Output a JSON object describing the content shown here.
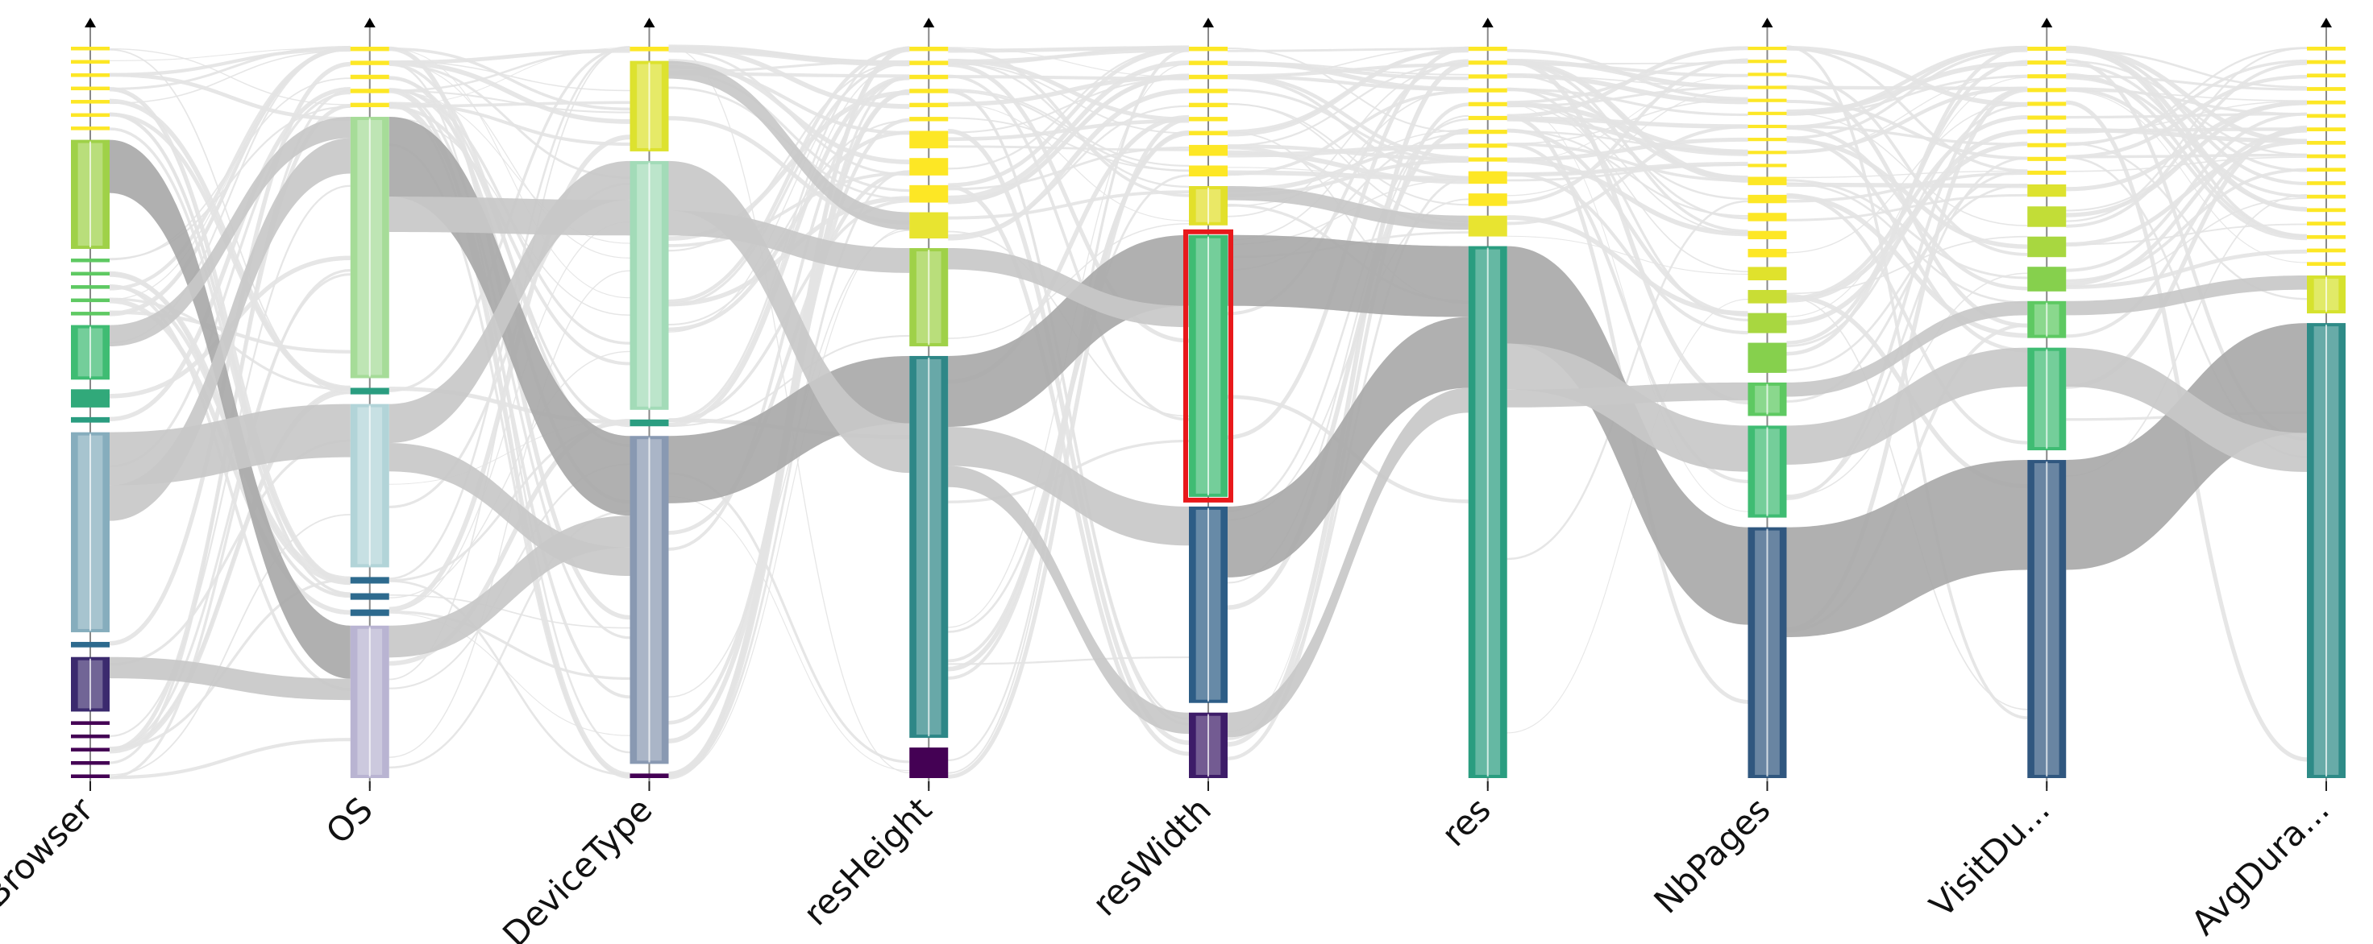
{
  "chart_data": {
    "type": "parallel-sets",
    "axes": [
      {
        "label": "Browser"
      },
      {
        "label": "OS"
      },
      {
        "label": "DeviceType"
      },
      {
        "label": "resHeight"
      },
      {
        "label": "resWidth"
      },
      {
        "label": "res"
      },
      {
        "label": "NbPages"
      },
      {
        "label": "VisitDu..."
      },
      {
        "label": "AvgDura..."
      }
    ],
    "categories": [
      [
        {
          "size": 2,
          "color": "#fde725"
        },
        {
          "size": 2,
          "color": "#fde725"
        },
        {
          "size": 2,
          "color": "#fde725"
        },
        {
          "size": 2,
          "color": "#fde725"
        },
        {
          "size": 2,
          "color": "#fde725"
        },
        {
          "size": 2,
          "color": "#fde725"
        },
        {
          "size": 2,
          "color": "#fde725"
        },
        {
          "size": 60,
          "color": "#9fd148"
        },
        {
          "size": 2,
          "color": "#5ec962"
        },
        {
          "size": 2,
          "color": "#5ec962"
        },
        {
          "size": 2,
          "color": "#5ec962"
        },
        {
          "size": 2,
          "color": "#5ec962"
        },
        {
          "size": 2,
          "color": "#5ec962"
        },
        {
          "size": 30,
          "color": "#3fbc73"
        },
        {
          "size": 10,
          "color": "#31a97a"
        },
        {
          "size": 3,
          "color": "#2a9d80"
        },
        {
          "size": 110,
          "color": "#86adbd"
        },
        {
          "size": 3,
          "color": "#2d6a8e"
        },
        {
          "size": 30,
          "color": "#3b2a6e"
        },
        {
          "size": 2,
          "color": "#440154"
        },
        {
          "size": 2,
          "color": "#440154"
        },
        {
          "size": 2,
          "color": "#440154"
        },
        {
          "size": 2,
          "color": "#440154"
        },
        {
          "size": 2,
          "color": "#440154"
        }
      ],
      [
        {
          "size": 2,
          "color": "#fde725"
        },
        {
          "size": 2,
          "color": "#fde725"
        },
        {
          "size": 2,
          "color": "#fde725"
        },
        {
          "size": 2,
          "color": "#fde725"
        },
        {
          "size": 2,
          "color": "#fde725"
        },
        {
          "size": 120,
          "color": "#a6dc98"
        },
        {
          "size": 3,
          "color": "#2a9d80"
        },
        {
          "size": 75,
          "color": "#b2d4d8"
        },
        {
          "size": 3,
          "color": "#2d6a8e"
        },
        {
          "size": 3,
          "color": "#2d6a8e"
        },
        {
          "size": 3,
          "color": "#2d6a8e"
        },
        {
          "size": 70,
          "color": "#b9b4d2"
        }
      ],
      [
        {
          "size": 2,
          "color": "#fde725"
        },
        {
          "size": 40,
          "color": "#dde22f"
        },
        {
          "size": 110,
          "color": "#a3dbb8"
        },
        {
          "size": 3,
          "color": "#2a9d80"
        },
        {
          "size": 145,
          "color": "#8999b2"
        },
        {
          "size": 2,
          "color": "#440154"
        }
      ],
      [
        {
          "size": 2,
          "color": "#fde725"
        },
        {
          "size": 2,
          "color": "#fde725"
        },
        {
          "size": 2,
          "color": "#fde725"
        },
        {
          "size": 2,
          "color": "#fde725"
        },
        {
          "size": 2,
          "color": "#fde725"
        },
        {
          "size": 2,
          "color": "#fde725"
        },
        {
          "size": 8,
          "color": "#fde725"
        },
        {
          "size": 8,
          "color": "#fde725"
        },
        {
          "size": 8,
          "color": "#fde725"
        },
        {
          "size": 12,
          "color": "#e8e430"
        },
        {
          "size": 45,
          "color": "#9fd148"
        },
        {
          "size": 175,
          "color": "#2e8787"
        },
        {
          "size": 14,
          "color": "#440154"
        }
      ],
      [
        {
          "size": 2,
          "color": "#fde725"
        },
        {
          "size": 2,
          "color": "#fde725"
        },
        {
          "size": 2,
          "color": "#fde725"
        },
        {
          "size": 2,
          "color": "#fde725"
        },
        {
          "size": 2,
          "color": "#fde725"
        },
        {
          "size": 2,
          "color": "#fde725"
        },
        {
          "size": 2,
          "color": "#fde725"
        },
        {
          "size": 5,
          "color": "#fde725"
        },
        {
          "size": 5,
          "color": "#fde725"
        },
        {
          "size": 18,
          "color": "#e2e02b"
        },
        {
          "size": 120,
          "color": "#3fbc73"
        },
        {
          "size": 90,
          "color": "#2d5d86"
        },
        {
          "size": 30,
          "color": "#3d1c68"
        }
      ],
      [
        {
          "size": 2,
          "color": "#fde725"
        },
        {
          "size": 2,
          "color": "#fde725"
        },
        {
          "size": 2,
          "color": "#fde725"
        },
        {
          "size": 2,
          "color": "#fde725"
        },
        {
          "size": 2,
          "color": "#fde725"
        },
        {
          "size": 2,
          "color": "#fde725"
        },
        {
          "size": 2,
          "color": "#fde725"
        },
        {
          "size": 2,
          "color": "#fde725"
        },
        {
          "size": 2,
          "color": "#fde725"
        },
        {
          "size": 6,
          "color": "#fde725"
        },
        {
          "size": 6,
          "color": "#fde725"
        },
        {
          "size": 10,
          "color": "#e8e430"
        },
        {
          "size": 255,
          "color": "#2a9d80"
        }
      ],
      [
        {
          "size": 2,
          "color": "#fde725"
        },
        {
          "size": 2,
          "color": "#fde725"
        },
        {
          "size": 2,
          "color": "#fde725"
        },
        {
          "size": 2,
          "color": "#fde725"
        },
        {
          "size": 2,
          "color": "#fde725"
        },
        {
          "size": 2,
          "color": "#fde725"
        },
        {
          "size": 2,
          "color": "#fde725"
        },
        {
          "size": 2,
          "color": "#fde725"
        },
        {
          "size": 2,
          "color": "#fde725"
        },
        {
          "size": 2,
          "color": "#fde725"
        },
        {
          "size": 5,
          "color": "#fde725"
        },
        {
          "size": 5,
          "color": "#fde725"
        },
        {
          "size": 5,
          "color": "#fde725"
        },
        {
          "size": 5,
          "color": "#fde725"
        },
        {
          "size": 5,
          "color": "#fde725"
        },
        {
          "size": 8,
          "color": "#e0e22c"
        },
        {
          "size": 8,
          "color": "#c9dd35"
        },
        {
          "size": 12,
          "color": "#a8d740"
        },
        {
          "size": 18,
          "color": "#86d04d"
        },
        {
          "size": 20,
          "color": "#5ec962"
        },
        {
          "size": 55,
          "color": "#3fbc73"
        },
        {
          "size": 150,
          "color": "#30577f"
        }
      ],
      [
        {
          "size": 2,
          "color": "#fde725"
        },
        {
          "size": 2,
          "color": "#fde725"
        },
        {
          "size": 2,
          "color": "#fde725"
        },
        {
          "size": 2,
          "color": "#fde725"
        },
        {
          "size": 2,
          "color": "#fde725"
        },
        {
          "size": 2,
          "color": "#fde725"
        },
        {
          "size": 2,
          "color": "#fde725"
        },
        {
          "size": 2,
          "color": "#fde725"
        },
        {
          "size": 2,
          "color": "#fde725"
        },
        {
          "size": 2,
          "color": "#fde725"
        },
        {
          "size": 6,
          "color": "#dde22f"
        },
        {
          "size": 10,
          "color": "#c2dd37"
        },
        {
          "size": 10,
          "color": "#a8d740"
        },
        {
          "size": 12,
          "color": "#86d04d"
        },
        {
          "size": 18,
          "color": "#5ec962"
        },
        {
          "size": 50,
          "color": "#3fbc73"
        },
        {
          "size": 155,
          "color": "#30577f"
        }
      ],
      [
        {
          "size": 2,
          "color": "#fde725"
        },
        {
          "size": 2,
          "color": "#fde725"
        },
        {
          "size": 2,
          "color": "#fde725"
        },
        {
          "size": 2,
          "color": "#fde725"
        },
        {
          "size": 2,
          "color": "#fde725"
        },
        {
          "size": 2,
          "color": "#fde725"
        },
        {
          "size": 2,
          "color": "#fde725"
        },
        {
          "size": 2,
          "color": "#fde725"
        },
        {
          "size": 2,
          "color": "#fde725"
        },
        {
          "size": 2,
          "color": "#fde725"
        },
        {
          "size": 2,
          "color": "#fde725"
        },
        {
          "size": 2,
          "color": "#fde725"
        },
        {
          "size": 2,
          "color": "#fde725"
        },
        {
          "size": 2,
          "color": "#fde725"
        },
        {
          "size": 2,
          "color": "#fde725"
        },
        {
          "size": 2,
          "color": "#fde725"
        },
        {
          "size": 2,
          "color": "#fde725"
        },
        {
          "size": 20,
          "color": "#d6e22e"
        },
        {
          "size": 240,
          "color": "#2e8b87"
        }
      ]
    ],
    "ribbons": [
      {
        "from": [
          0,
          7
        ],
        "to": [
          1,
          11
        ],
        "weight": 30,
        "color": "#a9a9a9"
      },
      {
        "from": [
          0,
          16
        ],
        "to": [
          1,
          7
        ],
        "weight": 30,
        "color": "#c8c8c8"
      },
      {
        "from": [
          0,
          13
        ],
        "to": [
          1,
          5
        ],
        "weight": 12,
        "color": "#c8c8c8"
      },
      {
        "from": [
          0,
          18
        ],
        "to": [
          1,
          11
        ],
        "weight": 12,
        "color": "#c8c8c8"
      },
      {
        "from": [
          0,
          16
        ],
        "to": [
          1,
          5
        ],
        "weight": 20,
        "color": "#c8c8c8"
      },
      {
        "from": [
          1,
          5
        ],
        "to": [
          2,
          4
        ],
        "weight": 45,
        "color": "#a9a9a9"
      },
      {
        "from": [
          1,
          7
        ],
        "to": [
          2,
          2
        ],
        "weight": 22,
        "color": "#c8c8c8"
      },
      {
        "from": [
          1,
          11
        ],
        "to": [
          2,
          4
        ],
        "weight": 18,
        "color": "#c8c8c8"
      },
      {
        "from": [
          1,
          5
        ],
        "to": [
          2,
          2
        ],
        "weight": 20,
        "color": "#c8c8c8"
      },
      {
        "from": [
          1,
          7
        ],
        "to": [
          2,
          4
        ],
        "weight": 16,
        "color": "#c8c8c8"
      },
      {
        "from": [
          2,
          4
        ],
        "to": [
          3,
          11
        ],
        "weight": 38,
        "color": "#a9a9a9"
      },
      {
        "from": [
          2,
          2
        ],
        "to": [
          3,
          11
        ],
        "weight": 28,
        "color": "#c8c8c8"
      },
      {
        "from": [
          2,
          1
        ],
        "to": [
          3,
          9
        ],
        "weight": 10,
        "color": "#c8c8c8"
      },
      {
        "from": [
          2,
          2
        ],
        "to": [
          3,
          10
        ],
        "weight": 14,
        "color": "#c8c8c8"
      },
      {
        "from": [
          3,
          11
        ],
        "to": [
          4,
          10
        ],
        "weight": 40,
        "color": "#a9a9a9"
      },
      {
        "from": [
          3,
          11
        ],
        "to": [
          4,
          11
        ],
        "weight": 22,
        "color": "#c8c8c8"
      },
      {
        "from": [
          3,
          11
        ],
        "to": [
          4,
          12
        ],
        "weight": 12,
        "color": "#c8c8c8"
      },
      {
        "from": [
          3,
          10
        ],
        "to": [
          4,
          10
        ],
        "weight": 12,
        "color": "#c8c8c8"
      },
      {
        "from": [
          4,
          10
        ],
        "to": [
          5,
          12
        ],
        "weight": 40,
        "color": "#a9a9a9"
      },
      {
        "from": [
          4,
          11
        ],
        "to": [
          5,
          12
        ],
        "weight": 40,
        "color": "#a9a9a9"
      },
      {
        "from": [
          4,
          12
        ],
        "to": [
          5,
          12
        ],
        "weight": 14,
        "color": "#c8c8c8"
      },
      {
        "from": [
          4,
          9
        ],
        "to": [
          5,
          11
        ],
        "weight": 8,
        "color": "#c8c8c8"
      },
      {
        "from": [
          5,
          12
        ],
        "to": [
          6,
          21
        ],
        "weight": 55,
        "color": "#a9a9a9"
      },
      {
        "from": [
          5,
          12
        ],
        "to": [
          6,
          20
        ],
        "weight": 26,
        "color": "#c8c8c8"
      },
      {
        "from": [
          5,
          12
        ],
        "to": [
          6,
          19
        ],
        "weight": 10,
        "color": "#c8c8c8"
      },
      {
        "from": [
          6,
          21
        ],
        "to": [
          7,
          16
        ],
        "weight": 62,
        "color": "#a9a9a9"
      },
      {
        "from": [
          6,
          20
        ],
        "to": [
          7,
          15
        ],
        "weight": 22,
        "color": "#c8c8c8"
      },
      {
        "from": [
          6,
          19
        ],
        "to": [
          7,
          14
        ],
        "weight": 8,
        "color": "#c8c8c8"
      },
      {
        "from": [
          7,
          16
        ],
        "to": [
          8,
          18
        ],
        "weight": 62,
        "color": "#a9a9a9"
      },
      {
        "from": [
          7,
          15
        ],
        "to": [
          8,
          18
        ],
        "weight": 22,
        "color": "#c8c8c8"
      },
      {
        "from": [
          7,
          14
        ],
        "to": [
          8,
          17
        ],
        "weight": 8,
        "color": "#c8c8c8"
      }
    ],
    "highlight": {
      "axis": 4,
      "category": 10,
      "color": "#e8191b"
    }
  }
}
